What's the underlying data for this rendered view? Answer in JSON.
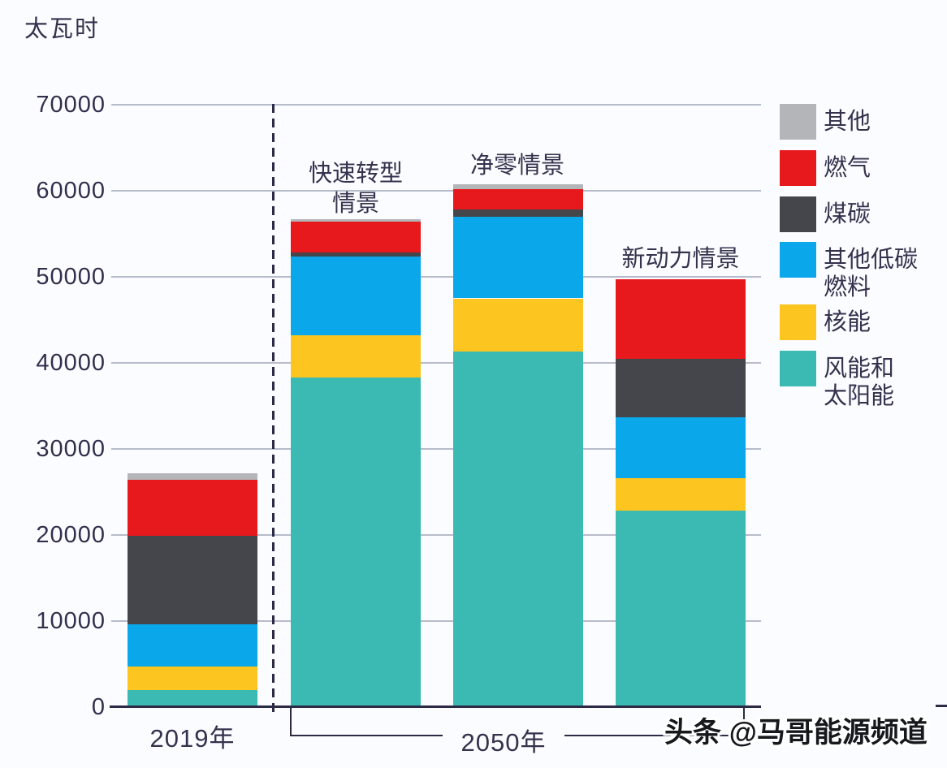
{
  "page": {
    "background": "#fbfcff",
    "watermark": "头条 @马哥能源频道"
  },
  "chart_data": {
    "type": "bar",
    "stacked": true,
    "title": "",
    "unit_label": "太瓦时",
    "ylabel": "太瓦时",
    "xlabel": "",
    "ylim": [
      0,
      70000
    ],
    "ytick_step": 10000,
    "yticks": [
      "0",
      "10000",
      "20000",
      "30000",
      "40000",
      "50000",
      "60000",
      "70000"
    ],
    "grid": "horizontal",
    "legend_position": "right",
    "categories": [
      "2019年",
      "快速转型情景",
      "净零情景",
      "新动力情景"
    ],
    "x_group_labels": [
      {
        "label": "2019年",
        "bars": [
          0
        ]
      },
      {
        "label": "2050年",
        "bars": [
          1,
          2,
          3
        ]
      }
    ],
    "series": [
      {
        "name": "风能和太阳能",
        "key": "wind-solar",
        "color": "#3bbab3",
        "values": [
          2000,
          38300,
          41300,
          22800
        ]
      },
      {
        "name": "核能",
        "key": "nuclear",
        "color": "#fcc51f",
        "values": [
          2700,
          4900,
          6200,
          3800
        ]
      },
      {
        "name": "其他低碳燃料",
        "key": "low-carbon",
        "color": "#0aa7ea",
        "values": [
          4900,
          9200,
          9500,
          7100
        ]
      },
      {
        "name": "煤碳",
        "key": "coal",
        "color": "#45464c",
        "values": [
          10300,
          400,
          800,
          6800
        ]
      },
      {
        "name": "燃气",
        "key": "gas",
        "color": "#e7191c",
        "values": [
          6500,
          3600,
          2400,
          9200
        ]
      },
      {
        "name": "其他",
        "key": "other",
        "color": "#b4b5b9",
        "values": [
          800,
          300,
          600,
          0
        ]
      }
    ],
    "totals": [
      27200,
      56700,
      60800,
      49700
    ]
  },
  "annotations": {
    "scenario_labels": [
      {
        "lines": [
          "快速转型",
          "情景"
        ]
      },
      {
        "lines": [
          "净零情景"
        ]
      },
      {
        "lines": [
          "新动力情景"
        ]
      }
    ]
  },
  "legend": {
    "items": [
      {
        "label": "其他",
        "key": "other",
        "color": "#b4b5b9"
      },
      {
        "label": "燃气",
        "key": "gas",
        "color": "#e7191c"
      },
      {
        "label": "煤碳",
        "key": "coal",
        "color": "#45464c"
      },
      {
        "label": "其他低碳\n燃料",
        "key": "low-carbon",
        "color": "#0aa7ea"
      },
      {
        "label": "核能",
        "key": "nuclear",
        "color": "#fcc51f"
      },
      {
        "label": "风能和\n太阳能",
        "key": "wind-solar",
        "color": "#3bbab3"
      }
    ]
  },
  "colors": {
    "axis": "#2b2b45",
    "gridline": "#b7bcca",
    "text": "#33334d"
  }
}
